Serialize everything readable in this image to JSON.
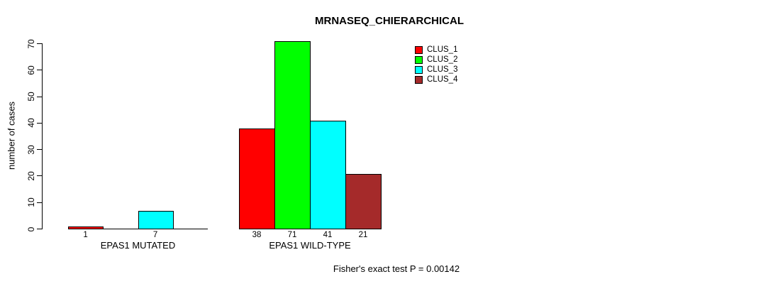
{
  "chart_data": {
    "type": "bar",
    "title": "MRNASEQ_CHIERARCHICAL",
    "ylabel": "number of cases",
    "xlabel": "",
    "ylim": [
      0,
      70
    ],
    "y_ticks": [
      0,
      10,
      20,
      30,
      40,
      50,
      60,
      70
    ],
    "grid": false,
    "categories": [
      "EPAS1 MUTATED",
      "EPAS1 WILD-TYPE"
    ],
    "series": [
      {
        "name": "CLUS_1",
        "color": "#FF0000",
        "values": [
          1,
          38
        ]
      },
      {
        "name": "CLUS_2",
        "color": "#00FF00",
        "values": [
          0,
          71
        ]
      },
      {
        "name": "CLUS_3",
        "color": "#00FFFF",
        "values": [
          7,
          41
        ]
      },
      {
        "name": "CLUS_4",
        "color": "#A52A2A",
        "values": [
          0,
          21
        ]
      }
    ],
    "bar_value_labels": [
      [
        "1",
        "",
        "7",
        ""
      ],
      [
        "38",
        "71",
        "41",
        "21"
      ]
    ],
    "legend": {
      "position": "top-right",
      "entries": [
        "CLUS_1",
        "CLUS_2",
        "CLUS_3",
        "CLUS_4"
      ]
    },
    "annotation": "Fisher's exact test P = 0.00142",
    "axis_color": "#000000",
    "background_color": "#FFFFFF"
  }
}
